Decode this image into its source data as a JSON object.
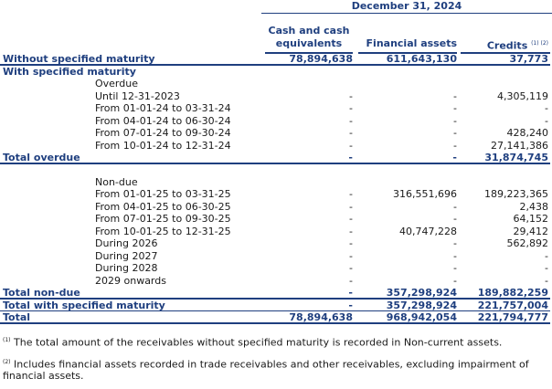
{
  "header": {
    "date": "December 31, 2024",
    "columns": [
      {
        "line1": "Cash and cash",
        "line2": "equivalents"
      },
      {
        "label": "Financial assets"
      },
      {
        "label": "Credits",
        "sup": "(1) (2)"
      }
    ]
  },
  "rows": [
    {
      "label": "Without specified maturity",
      "c1": "78,894,638",
      "c2": "611,643,130",
      "c3": "37,773"
    },
    {
      "label": "With specified maturity",
      "c1": "",
      "c2": "",
      "c3": ""
    },
    {
      "label": "Overdue",
      "c1": "",
      "c2": "",
      "c3": ""
    },
    {
      "label": "Until 12-31-2023",
      "c1": "-",
      "c2": "-",
      "c3": "4,305,119"
    },
    {
      "label": "From 01-01-24 to 03-31-24",
      "c1": "-",
      "c2": "-",
      "c3": "-"
    },
    {
      "label": "From 04-01-24 to 06-30-24",
      "c1": "-",
      "c2": "-",
      "c3": "-"
    },
    {
      "label": "From 07-01-24 to 09-30-24",
      "c1": "-",
      "c2": "-",
      "c3": "428,240"
    },
    {
      "label": "From 10-01-24 to 12-31-24",
      "c1": "-",
      "c2": "-",
      "c3": "27,141,386"
    },
    {
      "label": "Total overdue",
      "c1": "-",
      "c2": "-",
      "c3": "31,874,745"
    },
    {
      "label": "Non-due",
      "c1": "",
      "c2": "",
      "c3": ""
    },
    {
      "label": "From 01-01-25 to 03-31-25",
      "c1": "-",
      "c2": "316,551,696",
      "c3": "189,223,365"
    },
    {
      "label": "From 04-01-25 to 06-30-25",
      "c1": "-",
      "c2": "-",
      "c3": "2,438"
    },
    {
      "label": "From 07-01-25 to 09-30-25",
      "c1": "-",
      "c2": "-",
      "c3": "64,152"
    },
    {
      "label": "From 10-01-25 to 12-31-25",
      "c1": "-",
      "c2": "40,747,228",
      "c3": "29,412"
    },
    {
      "label": "During 2026",
      "c1": "-",
      "c2": "-",
      "c3": "562,892"
    },
    {
      "label": "During 2027",
      "c1": "-",
      "c2": "-",
      "c3": "-"
    },
    {
      "label": "During 2028",
      "c1": "-",
      "c2": "-",
      "c3": "-"
    },
    {
      "label": "2029 onwards",
      "c1": "-",
      "c2": "-",
      "c3": "-"
    },
    {
      "label": "Total non-due",
      "c1": "-",
      "c2": "357,298,924",
      "c3": "189,882,259"
    },
    {
      "label": "Total with specified maturity",
      "c1": "-",
      "c2": "357,298,924",
      "c3": "221,757,004"
    },
    {
      "label": "Total",
      "c1": "78,894,638",
      "c2": "968,942,054",
      "c3": "221,794,777"
    }
  ],
  "notes": [
    {
      "marker": "(1)",
      "text": "The total amount of the receivables without specified maturity is recorded in Non-current assets."
    },
    {
      "marker": "(2)",
      "text": "Includes financial assets recorded in trade receivables and other receivables, excluding impairment of financial assets."
    }
  ]
}
